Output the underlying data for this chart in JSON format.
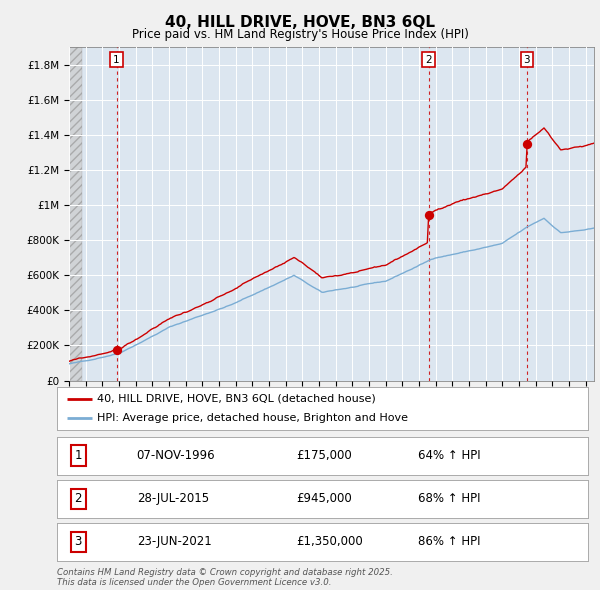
{
  "title": "40, HILL DRIVE, HOVE, BN3 6QL",
  "subtitle": "Price paid vs. HM Land Registry's House Price Index (HPI)",
  "legend_red": "40, HILL DRIVE, HOVE, BN3 6QL (detached house)",
  "legend_blue": "HPI: Average price, detached house, Brighton and Hove",
  "footer": "Contains HM Land Registry data © Crown copyright and database right 2025.\nThis data is licensed under the Open Government Licence v3.0.",
  "purchases": [
    {
      "label": "1",
      "date": 1996.85,
      "price": 175000,
      "note": "07-NOV-1996",
      "pct": "64% ↑ HPI"
    },
    {
      "label": "2",
      "date": 2015.57,
      "price": 945000,
      "note": "28-JUL-2015",
      "pct": "68% ↑ HPI"
    },
    {
      "label": "3",
      "date": 2021.47,
      "price": 1350000,
      "note": "23-JUN-2021",
      "pct": "86% ↑ HPI"
    }
  ],
  "table_rows": [
    {
      "label": "1",
      "date": "07-NOV-1996",
      "price": "£175,000",
      "pct": "64% ↑ HPI"
    },
    {
      "label": "2",
      "date": "28-JUL-2015",
      "price": "£945,000",
      "pct": "68% ↑ HPI"
    },
    {
      "label": "3",
      "date": "23-JUN-2021",
      "price": "£1,350,000",
      "pct": "86% ↑ HPI"
    }
  ],
  "ylim": [
    0,
    1900000
  ],
  "xlim": [
    1994.0,
    2025.5
  ],
  "yticks": [
    0,
    200000,
    400000,
    600000,
    800000,
    1000000,
    1200000,
    1400000,
    1600000,
    1800000
  ],
  "ytick_labels": [
    "£0",
    "£200K",
    "£400K",
    "£600K",
    "£800K",
    "£1M",
    "£1.2M",
    "£1.4M",
    "£1.6M",
    "£1.8M"
  ],
  "plot_bg": "#dce6f0",
  "fig_bg": "#f0f0f0",
  "red_color": "#cc0000",
  "blue_color": "#7badd4",
  "grid_color": "#ffffff"
}
